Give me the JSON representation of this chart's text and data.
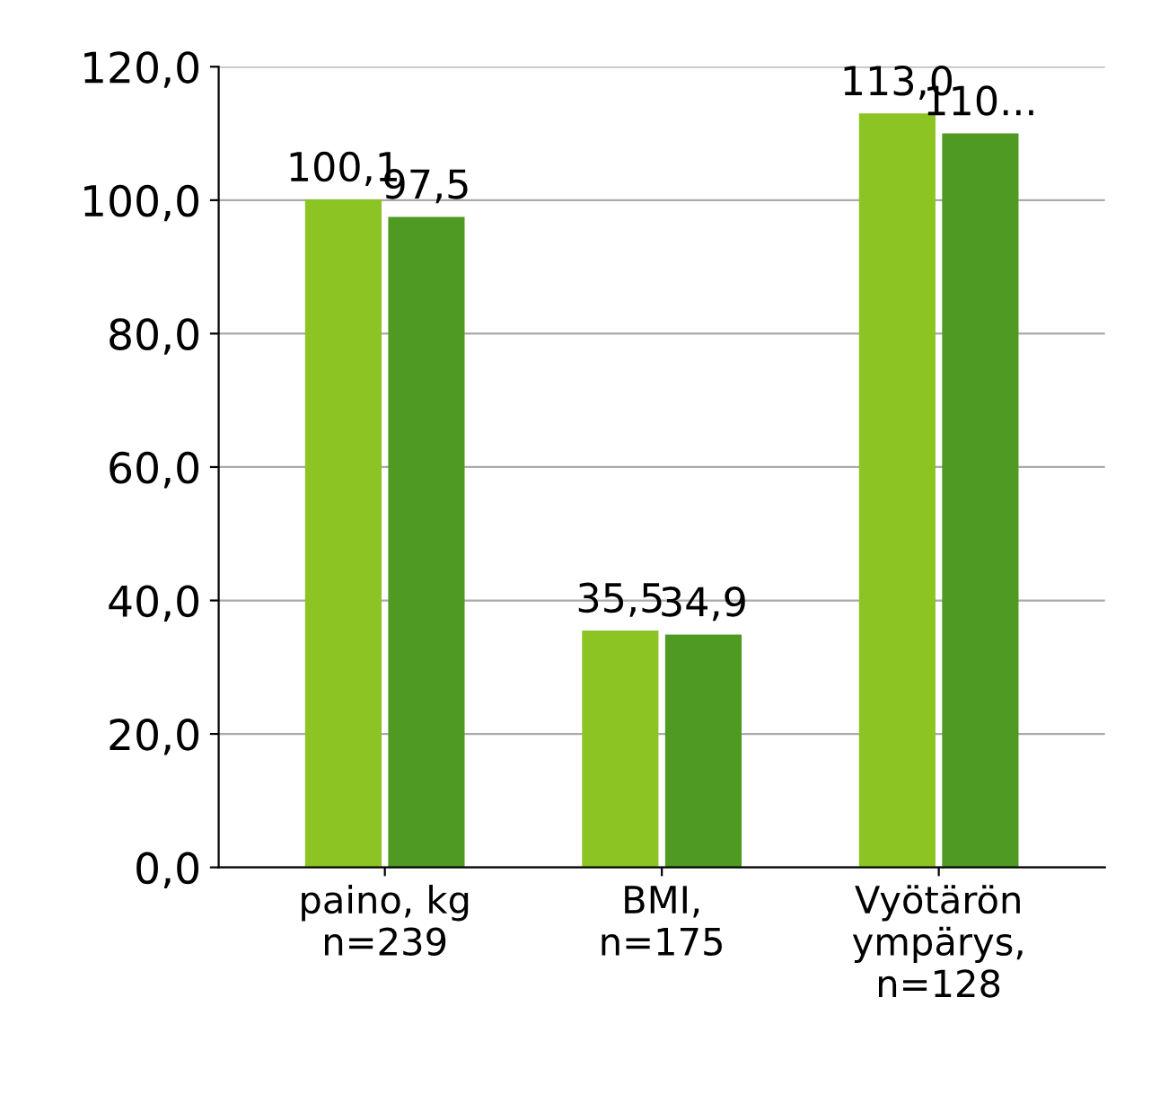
{
  "chart_data": {
    "type": "bar",
    "categories": [
      "paino, kg\nn=239",
      "BMI,\nn=175",
      "Vyötärön\nympärys,\nn=128"
    ],
    "series": [
      {
        "color": "#8cc423",
        "values": [
          100.1,
          35.5,
          113.0
        ],
        "value_labels": [
          "100,1",
          "35,5",
          "113,0"
        ]
      },
      {
        "color": "#4f9a22",
        "values": [
          97.5,
          34.9,
          110
        ],
        "value_labels": [
          "97,5",
          "34,9",
          "110..."
        ]
      }
    ],
    "ylim": [
      0,
      120
    ],
    "yticks": [
      {
        "value": 0,
        "label": "0,0"
      },
      {
        "value": 20,
        "label": "20,0"
      },
      {
        "value": 40,
        "label": "40,0"
      },
      {
        "value": 60,
        "label": "60,0"
      },
      {
        "value": 80,
        "label": "80,0"
      },
      {
        "value": 100,
        "label": "100,0"
      },
      {
        "value": 120,
        "label": "120,0"
      }
    ],
    "grid": "y"
  }
}
